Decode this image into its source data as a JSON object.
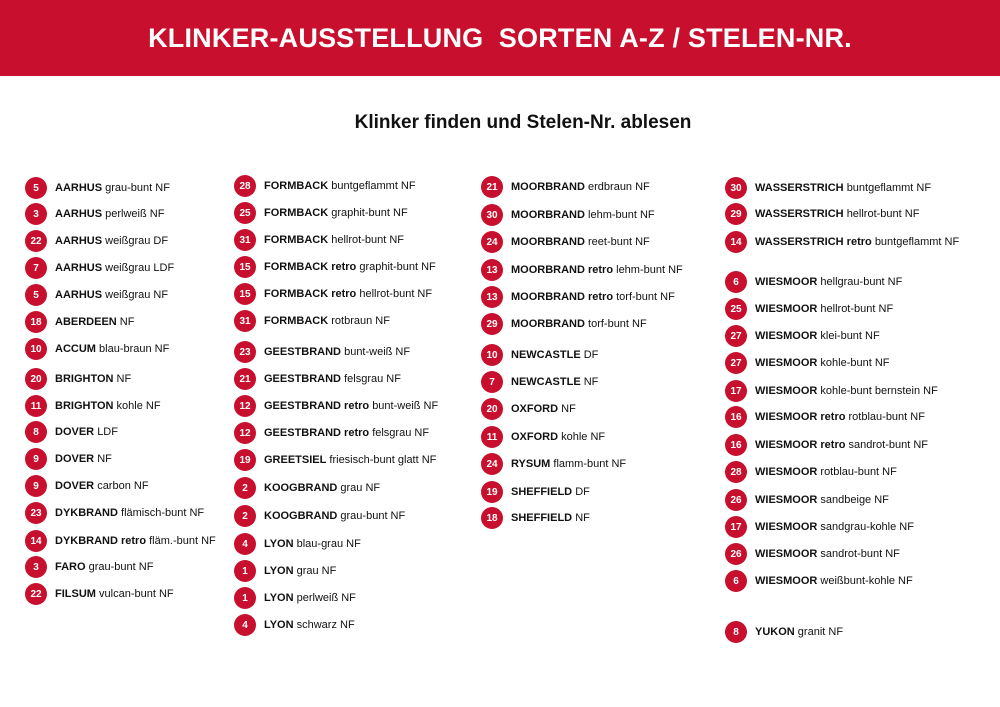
{
  "header": {
    "title": "KLINKER-AUSSTELLUNG  SORTEN A-Z / STELEN-NR."
  },
  "subtitle": "Klinker finden und Stelen-Nr. ablesen",
  "colors": {
    "accent": "#c8102e",
    "text": "#111111"
  },
  "columns": [
    [
      {
        "nr": "5",
        "brand": "AARHUS",
        "variant": "grau-bunt NF"
      },
      {
        "nr": "3",
        "brand": "AARHUS",
        "variant": "perlweiß NF"
      },
      {
        "nr": "22",
        "brand": "AARHUS",
        "variant": "weißgrau DF"
      },
      {
        "nr": "7",
        "brand": "AARHUS",
        "variant": "weißgrau LDF"
      },
      {
        "nr": "5",
        "brand": "AARHUS",
        "variant": "weißgrau NF"
      },
      {
        "nr": "18",
        "brand": "ABERDEEN",
        "variant": "NF"
      },
      {
        "nr": "10",
        "brand": "ACCUM",
        "variant": "blau-braun NF"
      },
      {
        "nr": "20",
        "brand": "BRIGHTON",
        "variant": "NF"
      },
      {
        "nr": "11",
        "brand": "BRIGHTON",
        "variant": "kohle NF"
      },
      {
        "nr": "8",
        "brand": "DOVER",
        "variant": "LDF"
      },
      {
        "nr": "9",
        "brand": "DOVER",
        "variant": "NF"
      },
      {
        "nr": "9",
        "brand": "DOVER",
        "variant": "carbon NF"
      },
      {
        "nr": "23",
        "brand": "DYKBRAND",
        "variant": "flämisch-bunt NF"
      },
      {
        "nr": "14",
        "brand": "DYKBRAND retro",
        "variant": "fläm.-bunt NF"
      },
      {
        "nr": "3",
        "brand": "FARO",
        "variant": "grau-bunt NF"
      },
      {
        "nr": "22",
        "brand": "FILSUM",
        "variant": "vulcan-bunt NF"
      }
    ],
    [
      {
        "nr": "28",
        "brand": "FORMBACK",
        "variant": "buntgeflammt NF"
      },
      {
        "nr": "25",
        "brand": "FORMBACK",
        "variant": "graphit-bunt NF"
      },
      {
        "nr": "31",
        "brand": "FORMBACK",
        "variant": "hellrot-bunt NF"
      },
      {
        "nr": "15",
        "brand": "FORMBACK retro",
        "variant": "graphit-bunt NF"
      },
      {
        "nr": "15",
        "brand": "FORMBACK retro",
        "variant": "hellrot-bunt NF"
      },
      {
        "nr": "31",
        "brand": "FORMBACK",
        "variant": "rotbraun NF"
      },
      {
        "nr": "23",
        "brand": "GEESTBRAND",
        "variant": "bunt-weiß NF"
      },
      {
        "nr": "21",
        "brand": "GEESTBRAND",
        "variant": "felsgrau NF"
      },
      {
        "nr": "12",
        "brand": "GEESTBRAND retro",
        "variant": "bunt-weiß NF"
      },
      {
        "nr": "12",
        "brand": "GEESTBRAND retro",
        "variant": "felsgrau NF"
      },
      {
        "nr": "19",
        "brand": "GREETSIEL",
        "variant": "friesisch-bunt glatt NF"
      },
      {
        "nr": "2",
        "brand": "KOOGBRAND",
        "variant": "grau NF"
      },
      {
        "nr": "2",
        "brand": "KOOGBRAND",
        "variant": "grau-bunt NF"
      },
      {
        "nr": "4",
        "brand": "LYON",
        "variant": "blau-grau NF"
      },
      {
        "nr": "1",
        "brand": "LYON",
        "variant": "grau NF"
      },
      {
        "nr": "1",
        "brand": "LYON",
        "variant": "perlweiß NF"
      },
      {
        "nr": "4",
        "brand": "LYON",
        "variant": "schwarz NF"
      }
    ],
    [
      {
        "nr": "21",
        "brand": "MOORBRAND",
        "variant": "erdbraun NF"
      },
      {
        "nr": "30",
        "brand": "MOORBRAND",
        "variant": "lehm-bunt NF"
      },
      {
        "nr": "24",
        "brand": "MOORBRAND",
        "variant": "reet-bunt NF"
      },
      {
        "nr": "13",
        "brand": "MOORBRAND retro",
        "variant": "lehm-bunt NF"
      },
      {
        "nr": "13",
        "brand": "MOORBRAND retro",
        "variant": "torf-bunt NF"
      },
      {
        "nr": "29",
        "brand": "MOORBRAND",
        "variant": "torf-bunt NF"
      },
      {
        "nr": "10",
        "brand": "NEWCASTLE",
        "variant": "DF"
      },
      {
        "nr": "7",
        "brand": "NEWCASTLE",
        "variant": "NF"
      },
      {
        "nr": "20",
        "brand": "OXFORD",
        "variant": "NF"
      },
      {
        "nr": "11",
        "brand": "OXFORD",
        "variant": "kohle NF"
      },
      {
        "nr": "24",
        "brand": "RYSUM",
        "variant": "flamm-bunt NF"
      },
      {
        "nr": "19",
        "brand": "SHEFFIELD",
        "variant": "DF"
      },
      {
        "nr": "18",
        "brand": "SHEFFIELD",
        "variant": "NF"
      }
    ],
    [
      {
        "nr": "30",
        "brand": "WASSERSTRICH",
        "variant": "buntgeflammt NF"
      },
      {
        "nr": "29",
        "brand": "WASSERSTRICH",
        "variant": "hellrot-bunt NF"
      },
      {
        "nr": "14",
        "brand": "WASSERSTRICH retro",
        "variant": "buntgeflammt NF"
      },
      {
        "nr": "6",
        "brand": "WIESMOOR",
        "variant": "hellgrau-bunt NF"
      },
      {
        "nr": "25",
        "brand": "WIESMOOR",
        "variant": "hellrot-bunt NF"
      },
      {
        "nr": "27",
        "brand": "WIESMOOR",
        "variant": "klei-bunt NF"
      },
      {
        "nr": "27",
        "brand": "WIESMOOR",
        "variant": "kohle-bunt NF"
      },
      {
        "nr": "17",
        "brand": "WIESMOOR",
        "variant": "kohle-bunt bernstein NF"
      },
      {
        "nr": "16",
        "brand": "WIESMOOR retro",
        "variant": "rotblau-bunt NF"
      },
      {
        "nr": "16",
        "brand": "WIESMOOR retro",
        "variant": "sandrot-bunt NF"
      },
      {
        "nr": "28",
        "brand": "WIESMOOR",
        "variant": "rotblau-bunt NF"
      },
      {
        "nr": "26",
        "brand": "WIESMOOR",
        "variant": "sandbeige NF"
      },
      {
        "nr": "17",
        "brand": "WIESMOOR",
        "variant": "sandgrau-kohle NF"
      },
      {
        "nr": "26",
        "brand": "WIESMOOR",
        "variant": "sandrot-bunt NF"
      },
      {
        "nr": "6",
        "brand": "WIESMOOR",
        "variant": "weißbunt-kohle NF"
      },
      {
        "nr": "8",
        "brand": "YUKON",
        "variant": "granit NF"
      }
    ]
  ]
}
